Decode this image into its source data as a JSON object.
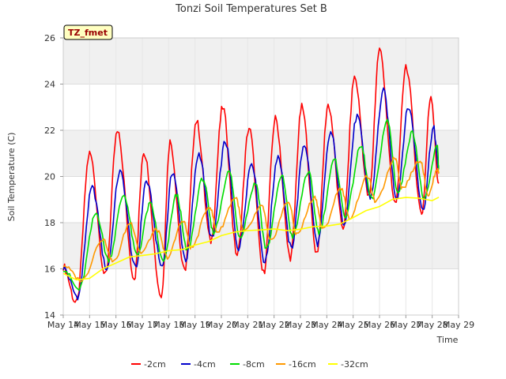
{
  "chart_data": {
    "type": "line",
    "title": "Tonzi Soil Temperatures Set B",
    "xlabel": "Time",
    "ylabel": "Soil Temperature (C)",
    "badge": "TZ_fmet",
    "ylim": [
      14,
      26
    ],
    "yticks": [
      14,
      16,
      18,
      20,
      22,
      24,
      26
    ],
    "xlim": [
      0,
      15
    ],
    "xtick_labels": [
      "May 14",
      "May 15",
      "May 16",
      "May 17",
      "May 18",
      "May 19",
      "May 20",
      "May 21",
      "May 22",
      "May 23",
      "May 24",
      "May 25",
      "May 26",
      "May 27",
      "May 28",
      "May 29"
    ],
    "grid": true,
    "legend_position": "bottom",
    "x_unit": "days since May 14",
    "series": [
      {
        "name": "-2cm",
        "color": "#ff0000",
        "minima": [
          [
            0.5,
            14.5
          ],
          [
            1.6,
            15.7
          ],
          [
            2.7,
            15.6
          ],
          [
            3.72,
            14.8
          ],
          [
            4.6,
            15.9
          ],
          [
            5.6,
            17.2
          ],
          [
            6.6,
            16.6
          ],
          [
            7.6,
            15.8
          ],
          [
            8.62,
            16.5
          ],
          [
            9.62,
            16.7
          ],
          [
            10.62,
            17.8
          ],
          [
            11.6,
            19.1
          ],
          [
            12.6,
            18.8
          ],
          [
            13.6,
            18.4
          ]
        ],
        "maxima": [
          [
            1.0,
            21.0
          ],
          [
            2.05,
            21.9
          ],
          [
            3.05,
            21.1
          ],
          [
            4.05,
            21.5
          ],
          [
            5.05,
            22.4
          ],
          [
            6.05,
            23.0
          ],
          [
            7.05,
            22.1
          ],
          [
            8.05,
            22.5
          ],
          [
            9.05,
            23.0
          ],
          [
            10.05,
            23.1
          ],
          [
            11.05,
            24.3
          ],
          [
            12.0,
            25.5
          ],
          [
            13.0,
            24.8
          ],
          [
            13.95,
            23.5
          ]
        ],
        "end": [
          14.25,
          19.7
        ]
      },
      {
        "name": "-4cm",
        "color": "#0000cc",
        "minima": [
          [
            0.55,
            14.8
          ],
          [
            1.65,
            16.0
          ],
          [
            2.75,
            16.0
          ],
          [
            3.75,
            16.1
          ],
          [
            4.65,
            16.4
          ],
          [
            5.65,
            17.3
          ],
          [
            6.65,
            16.9
          ],
          [
            7.65,
            16.3
          ],
          [
            8.65,
            16.9
          ],
          [
            9.65,
            17.1
          ],
          [
            10.65,
            18.0
          ],
          [
            11.65,
            19.1
          ],
          [
            12.65,
            19.1
          ],
          [
            13.65,
            18.6
          ]
        ],
        "maxima": [
          [
            1.1,
            19.5
          ],
          [
            2.15,
            20.2
          ],
          [
            3.15,
            19.8
          ],
          [
            4.15,
            20.2
          ],
          [
            5.15,
            21.0
          ],
          [
            6.15,
            21.5
          ],
          [
            7.15,
            20.6
          ],
          [
            8.15,
            20.9
          ],
          [
            9.15,
            21.4
          ],
          [
            10.15,
            21.9
          ],
          [
            11.15,
            22.6
          ],
          [
            12.15,
            23.7
          ],
          [
            13.1,
            23.0
          ],
          [
            14.05,
            22.1
          ]
        ],
        "end": [
          14.25,
          20.3
        ]
      },
      {
        "name": "-8cm",
        "color": "#00dd00",
        "minima": [
          [
            0.6,
            15.1
          ],
          [
            1.72,
            16.4
          ],
          [
            2.8,
            16.6
          ],
          [
            3.8,
            16.3
          ],
          [
            4.7,
            16.8
          ],
          [
            5.7,
            17.6
          ],
          [
            6.7,
            17.4
          ],
          [
            7.7,
            16.9
          ],
          [
            8.7,
            17.4
          ],
          [
            9.7,
            17.6
          ],
          [
            10.7,
            18.3
          ],
          [
            11.7,
            19.0
          ],
          [
            12.7,
            19.3
          ],
          [
            13.7,
            19.0
          ]
        ],
        "maxima": [
          [
            1.25,
            18.4
          ],
          [
            2.3,
            19.2
          ],
          [
            3.3,
            18.8
          ],
          [
            4.3,
            19.2
          ],
          [
            5.3,
            19.9
          ],
          [
            6.3,
            20.2
          ],
          [
            7.3,
            19.7
          ],
          [
            8.3,
            20.0
          ],
          [
            9.3,
            20.2
          ],
          [
            10.3,
            20.7
          ],
          [
            11.3,
            21.3
          ],
          [
            12.3,
            22.4
          ],
          [
            13.25,
            21.9
          ],
          [
            14.2,
            21.3
          ]
        ],
        "end": [
          14.25,
          20.3
        ]
      },
      {
        "name": "-16cm",
        "color": "#ff9900",
        "minima": [
          [
            0.7,
            15.5
          ],
          [
            1.9,
            16.3
          ],
          [
            2.95,
            16.7
          ],
          [
            3.95,
            16.5
          ],
          [
            4.85,
            16.9
          ],
          [
            5.85,
            17.6
          ],
          [
            6.85,
            17.6
          ],
          [
            7.85,
            17.2
          ],
          [
            8.85,
            17.5
          ],
          [
            9.85,
            17.7
          ],
          [
            10.85,
            18.2
          ],
          [
            11.85,
            18.9
          ],
          [
            12.85,
            19.5
          ],
          [
            13.85,
            19.2
          ]
        ],
        "maxima": [
          [
            1.5,
            17.3
          ],
          [
            2.55,
            18.0
          ],
          [
            3.55,
            17.7
          ],
          [
            4.55,
            18.1
          ],
          [
            5.55,
            18.7
          ],
          [
            6.55,
            19.1
          ],
          [
            7.55,
            18.7
          ],
          [
            8.55,
            18.9
          ],
          [
            9.55,
            19.1
          ],
          [
            10.55,
            19.5
          ],
          [
            11.55,
            20.0
          ],
          [
            12.6,
            20.8
          ],
          [
            13.55,
            20.7
          ],
          [
            14.2,
            20.3
          ]
        ],
        "end": [
          14.25,
          20.2
        ]
      },
      {
        "name": "-32cm",
        "color": "#ffff00",
        "points": [
          [
            0,
            15.8
          ],
          [
            0.5,
            15.55
          ],
          [
            1.0,
            15.6
          ],
          [
            1.5,
            16.0
          ],
          [
            2.0,
            16.3
          ],
          [
            2.5,
            16.5
          ],
          [
            3.0,
            16.6
          ],
          [
            3.5,
            16.65
          ],
          [
            4.0,
            16.8
          ],
          [
            4.5,
            16.85
          ],
          [
            5.0,
            17.0
          ],
          [
            5.5,
            17.2
          ],
          [
            6.0,
            17.4
          ],
          [
            6.5,
            17.55
          ],
          [
            7.0,
            17.6
          ],
          [
            7.5,
            17.7
          ],
          [
            8.0,
            17.75
          ],
          [
            8.5,
            17.7
          ],
          [
            9.0,
            17.75
          ],
          [
            9.5,
            17.8
          ],
          [
            10.0,
            17.9
          ],
          [
            10.5,
            18.0
          ],
          [
            11.0,
            18.2
          ],
          [
            11.5,
            18.5
          ],
          [
            12.0,
            18.7
          ],
          [
            12.5,
            19.0
          ],
          [
            13.0,
            19.1
          ],
          [
            13.5,
            19.05
          ],
          [
            14.0,
            19.0
          ],
          [
            14.25,
            19.1
          ]
        ]
      }
    ]
  }
}
